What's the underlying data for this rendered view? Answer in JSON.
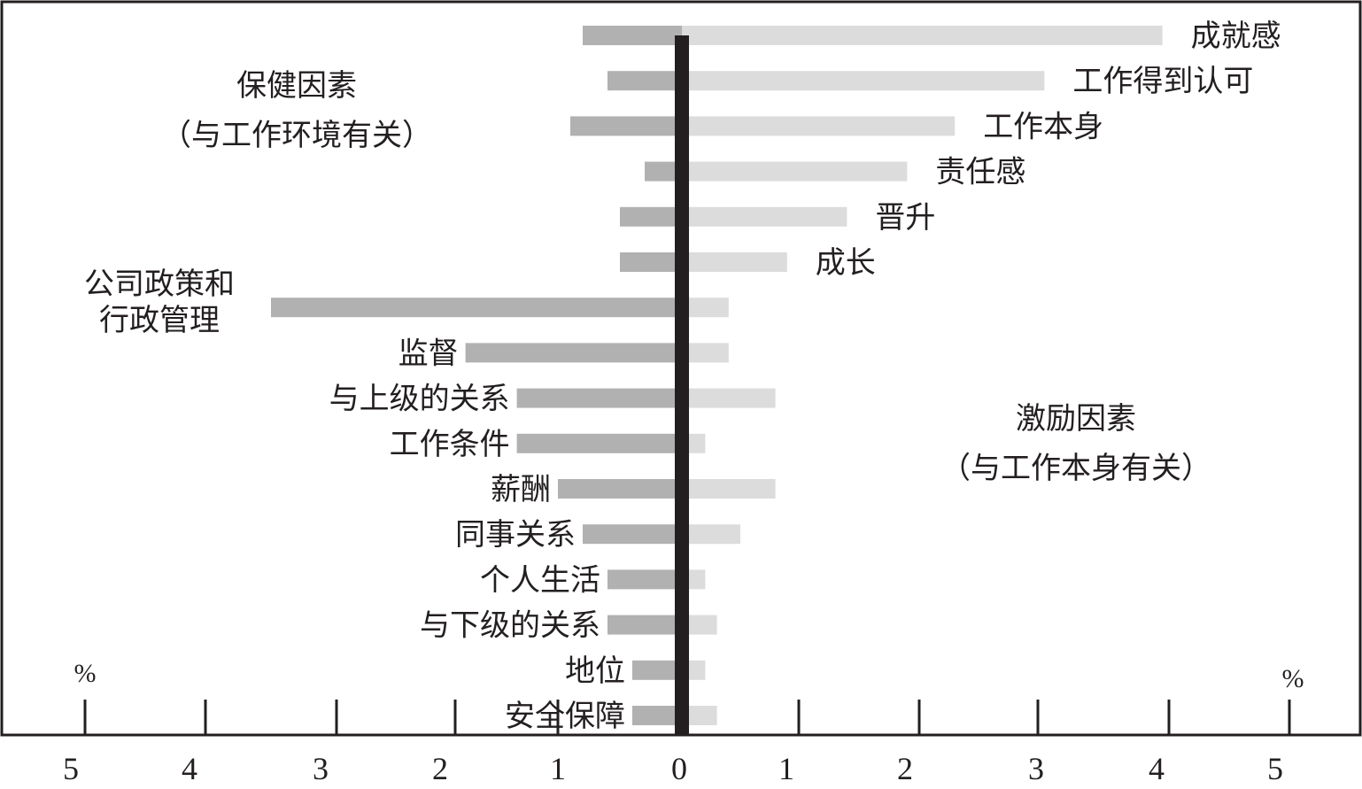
{
  "chart_data": {
    "type": "bar",
    "orientation": "horizontal-diverging",
    "x_unit": "%",
    "xlim": [
      -5,
      5
    ],
    "x_ticks": [
      5,
      4,
      3,
      2,
      1,
      0,
      1,
      2,
      3,
      4,
      5
    ],
    "grid": false,
    "colors": {
      "hygiene": "#b1b1b1",
      "motivator": "#dcdcdc",
      "zero_line": "#231f20",
      "frame": "#231f20",
      "text": "#231f20"
    },
    "group_labels": {
      "hygiene": [
        "保健因素",
        "（与工作环境有关）"
      ],
      "motivator": [
        "激励因素",
        "（与工作本身有关）"
      ]
    },
    "categories": [
      {
        "label": [
          "成就感"
        ],
        "hygiene": 0.8,
        "motivator": 3.95,
        "label_side": "right"
      },
      {
        "label": [
          "工作得到认可"
        ],
        "hygiene": 0.6,
        "motivator": 3.05,
        "label_side": "right"
      },
      {
        "label": [
          "工作本身"
        ],
        "hygiene": 0.9,
        "motivator": 2.3,
        "label_side": "right"
      },
      {
        "label": [
          "责任感"
        ],
        "hygiene": 0.3,
        "motivator": 1.9,
        "label_side": "right"
      },
      {
        "label": [
          "晋升"
        ],
        "hygiene": 0.5,
        "motivator": 1.4,
        "label_side": "right"
      },
      {
        "label": [
          "成长"
        ],
        "hygiene": 0.5,
        "motivator": 0.9,
        "label_side": "right"
      },
      {
        "label": [
          "公司政策和",
          "行政管理"
        ],
        "hygiene": 3.5,
        "motivator": 0.4,
        "label_side": "left"
      },
      {
        "label": [
          "监督"
        ],
        "hygiene": 1.9,
        "motivator": 0.4,
        "label_side": "left"
      },
      {
        "label": [
          "与上级的关系"
        ],
        "hygiene": 1.4,
        "motivator": 0.8,
        "label_side": "left"
      },
      {
        "label": [
          "工作条件"
        ],
        "hygiene": 1.4,
        "motivator": 0.2,
        "label_side": "left"
      },
      {
        "label": [
          "薪酬"
        ],
        "hygiene": 1.0,
        "motivator": 0.8,
        "label_side": "left"
      },
      {
        "label": [
          "同事关系"
        ],
        "hygiene": 0.8,
        "motivator": 0.5,
        "label_side": "left"
      },
      {
        "label": [
          "个人生活"
        ],
        "hygiene": 0.6,
        "motivator": 0.2,
        "label_side": "left"
      },
      {
        "label": [
          "与下级的关系"
        ],
        "hygiene": 0.6,
        "motivator": 0.3,
        "label_side": "left"
      },
      {
        "label": [
          "地位"
        ],
        "hygiene": 0.4,
        "motivator": 0.2,
        "label_side": "left"
      },
      {
        "label": [
          "安全保障"
        ],
        "hygiene": 0.4,
        "motivator": 0.3,
        "label_side": "left"
      }
    ]
  }
}
